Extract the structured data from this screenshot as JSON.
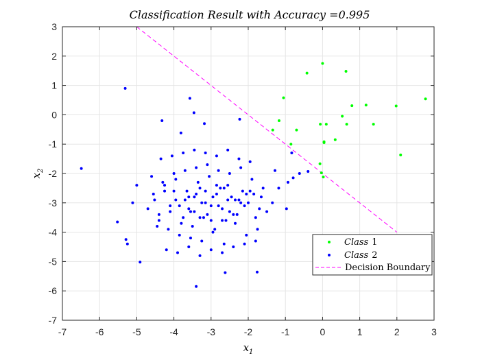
{
  "chart_data": {
    "type": "scatter",
    "title": "Classification Result with Accuracy =0.995",
    "xlabel": "x1",
    "ylabel": "x2",
    "xlabel_main": "x",
    "xlabel_sub": "1",
    "ylabel_main": "x",
    "ylabel_sub": "2",
    "xlim": [
      -7,
      3
    ],
    "ylim": [
      -7,
      3
    ],
    "xticks": [
      "-7",
      "-6",
      "-5",
      "-4",
      "-3",
      "-2",
      "-1",
      "0",
      "1",
      "2",
      "3"
    ],
    "yticks": [
      "3",
      "2",
      "1",
      "0",
      "-1",
      "-2",
      "-3",
      "-4",
      "-5",
      "-6",
      "-7"
    ],
    "grid": true,
    "legend_position": "bottom-right",
    "colors": {
      "class1": "#00ff00",
      "class2": "#0000ff",
      "boundary": "#ff00ff",
      "grid": "#e5e5e5",
      "axis": "#262626"
    },
    "series": [
      {
        "name": "Class 1",
        "label_main": "Class",
        "label_num": "1",
        "x": [
          0.0,
          -0.42,
          0.63,
          -1.05,
          1.17,
          1.98,
          2.77,
          0.79,
          0.53,
          -1.17,
          -0.06,
          0.1,
          0.65,
          1.37,
          -0.7,
          0.34,
          0.04,
          0.04,
          2.1,
          -0.07,
          -1.34,
          -0.03,
          0.02,
          -0.85
        ],
        "y": [
          1.75,
          1.42,
          1.48,
          0.58,
          0.33,
          0.3,
          0.54,
          0.31,
          -0.05,
          -0.2,
          -0.32,
          -0.32,
          -0.32,
          -0.32,
          -0.52,
          -0.85,
          -0.92,
          -0.95,
          -1.37,
          -1.67,
          -0.52,
          -1.98,
          -2.12,
          -1.0
        ]
      },
      {
        "name": "Class 2",
        "label_main": "Class",
        "label_num": "2",
        "x": [
          -5.31,
          -3.57,
          -3.46,
          -4.32,
          -3.18,
          -2.23,
          -6.49,
          -3.81,
          -5.29,
          -5.25,
          -4.91,
          -3.4,
          -2.62,
          -1.76,
          -1.35,
          -1.18,
          -0.93,
          -0.79,
          -0.62,
          -0.39,
          -0.83,
          -1.28,
          -0.97,
          -5.52,
          -5.11,
          -5.0,
          -4.52,
          -4.4,
          -4.25,
          -4.1,
          -3.95,
          -3.75,
          -3.6,
          -3.45,
          -3.3,
          -3.15,
          -3.0,
          -2.85,
          -2.7,
          -2.55,
          -2.4,
          -2.25,
          -2.1,
          -1.95,
          -1.8,
          -1.65,
          -1.5,
          -4.6,
          -4.45,
          -4.3,
          -4.15,
          -4.0,
          -3.85,
          -3.7,
          -3.55,
          -3.4,
          -3.25,
          -3.1,
          -2.95,
          -2.8,
          -2.65,
          -2.5,
          -2.35,
          -2.2,
          -2.05,
          -1.9,
          -1.75,
          -1.6,
          -4.7,
          -4.55,
          -4.4,
          -4.25,
          -4.1,
          -3.95,
          -3.8,
          -3.65,
          -3.5,
          -3.35,
          -3.2,
          -3.05,
          -2.9,
          -2.75,
          -2.6,
          -2.45,
          -2.3,
          -2.15,
          -2.0,
          -1.85,
          -1.7,
          -4.35,
          -4.2,
          -4.05,
          -3.9,
          -3.75,
          -3.6,
          -3.45,
          -3.3,
          -3.15,
          -3.0,
          -2.85,
          -2.7,
          -2.55,
          -2.4,
          -2.25,
          -2.1,
          -1.95,
          -1.8,
          -4.0,
          -3.85,
          -3.7,
          -3.55,
          -3.4,
          -3.25,
          -3.1,
          -2.95,
          -2.8,
          -2.65,
          -2.5,
          -2.35,
          -2.2,
          -2.05,
          -3.6,
          -3.45,
          -3.3,
          -3.15,
          -3.0,
          -2.85,
          -2.7,
          -2.55
        ],
        "y": [
          0.9,
          0.56,
          0.07,
          -0.2,
          -0.3,
          -0.15,
          -1.83,
          -0.62,
          -4.25,
          -4.4,
          -5.02,
          -5.85,
          -5.38,
          -5.36,
          -3.0,
          -2.5,
          -2.3,
          -2.15,
          -2.0,
          -1.93,
          -1.3,
          -1.9,
          -3.2,
          -3.65,
          -3.0,
          -2.4,
          -2.9,
          -3.4,
          -2.6,
          -3.1,
          -2.2,
          -3.5,
          -2.8,
          -3.3,
          -2.5,
          -3.0,
          -3.6,
          -2.7,
          -3.2,
          -2.4,
          -3.4,
          -2.9,
          -3.1,
          -2.6,
          -3.5,
          -2.8,
          -3.3,
          -2.1,
          -3.8,
          -2.3,
          -3.9,
          -2.0,
          -4.1,
          -1.9,
          -4.2,
          -1.8,
          -4.3,
          -1.7,
          -4.0,
          -1.9,
          -4.4,
          -2.0,
          -3.7,
          -1.8,
          -4.1,
          -2.2,
          -3.9,
          -2.5,
          -3.2,
          -2.7,
          -3.6,
          -2.4,
          -3.3,
          -2.9,
          -3.7,
          -2.6,
          -3.8,
          -2.3,
          -3.5,
          -2.1,
          -3.9,
          -2.5,
          -3.6,
          -2.8,
          -3.4,
          -2.6,
          -3.0,
          -2.7,
          -3.2,
          -1.5,
          -4.6,
          -1.4,
          -4.7,
          -1.3,
          -4.5,
          -1.2,
          -4.8,
          -1.3,
          -4.6,
          -1.4,
          -4.7,
          -1.2,
          -4.5,
          -1.5,
          -4.4,
          -1.6,
          -4.3,
          -2.6,
          -3.1,
          -2.9,
          -3.3,
          -2.7,
          -3.0,
          -3.4,
          -2.8,
          -3.1,
          -2.5,
          -3.3,
          -2.9,
          -3.0,
          -2.7,
          -3.2,
          -2.8,
          -3.5,
          -2.6,
          -3.1,
          -2.4,
          -3.6,
          -2.9
        ]
      },
      {
        "name": "Decision Boundary",
        "x": [
          -5.0,
          2.0
        ],
        "y": [
          3.0,
          -4.0
        ]
      }
    ]
  }
}
